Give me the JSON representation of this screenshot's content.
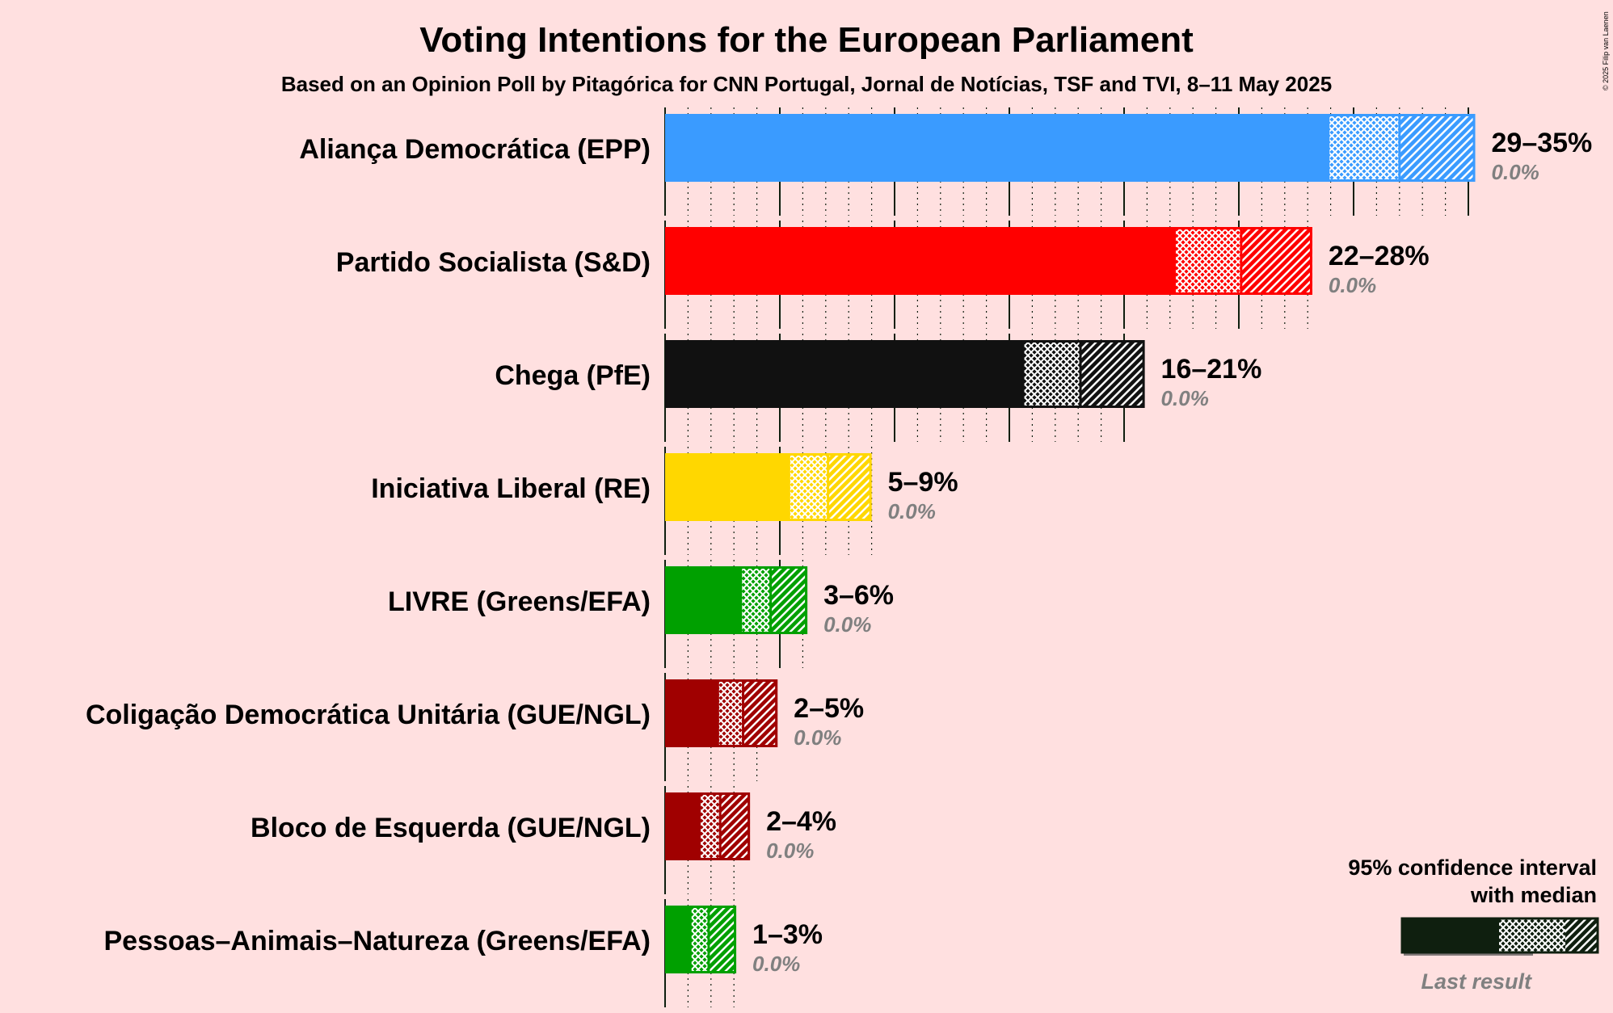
{
  "title": "Voting Intentions for the European Parliament",
  "subtitle": "Based on an Opinion Poll by Pitagórica for CNN Portugal, Jornal de Notícias, TSF and TVI, 8–11 May 2025",
  "copyright": "© 2025 Filip van Laenen",
  "legend": {
    "ci_line1": "95% confidence interval",
    "ci_line2": "with median",
    "last_result": "Last result"
  },
  "chart_data": {
    "type": "bar",
    "orientation": "horizontal",
    "title": "Voting Intentions for the European Parliament",
    "subtitle": "Based on an Opinion Poll by Pitagórica for CNN Portugal, Jornal de Notícias, TSF and TVI, 8–11 May 2025",
    "xlim": [
      0,
      36
    ],
    "unit": "%",
    "grid": true,
    "legend_position": "bottom-right",
    "categories": [
      "Aliança Democrática (EPP)",
      "Partido Socialista (S&D)",
      "Chega (PfE)",
      "Iniciativa Liberal (RE)",
      "LIVRE (Greens/EFA)",
      "Coligação Democrática Unitária (GUE/NGL)",
      "Bloco de Esquerda (GUE/NGL)",
      "Pessoas–Animais–Natureza (Greens/EFA)"
    ],
    "series": [
      {
        "party": "Aliança Democrática (EPP)",
        "color": "#3a9bff",
        "ci_low": 28.9,
        "median": 32.0,
        "ci_high": 35.3,
        "range_label": "29–35%",
        "last_result_label": "0.0%",
        "last_result": 0.0
      },
      {
        "party": "Partido Socialista (S&D)",
        "color": "#ff0000",
        "ci_low": 22.2,
        "median": 25.1,
        "ci_high": 28.2,
        "range_label": "22–28%",
        "last_result_label": "0.0%",
        "last_result": 0.0
      },
      {
        "party": "Chega (PfE)",
        "color": "#111111",
        "ci_low": 15.6,
        "median": 18.1,
        "ci_high": 20.9,
        "range_label": "16–21%",
        "last_result_label": "0.0%",
        "last_result": 0.0
      },
      {
        "party": "Iniciativa Liberal (RE)",
        "color": "#ffd700",
        "ci_low": 5.4,
        "median": 7.1,
        "ci_high": 9.0,
        "range_label": "5–9%",
        "last_result_label": "0.0%",
        "last_result": 0.0
      },
      {
        "party": "LIVRE (Greens/EFA)",
        "color": "#00a000",
        "ci_low": 3.3,
        "median": 4.6,
        "ci_high": 6.2,
        "range_label": "3–6%",
        "last_result_label": "0.0%",
        "last_result": 0.0
      },
      {
        "party": "Coligação Democrática Unitária (GUE/NGL)",
        "color": "#a00000",
        "ci_low": 2.3,
        "median": 3.4,
        "ci_high": 4.9,
        "range_label": "2–5%",
        "last_result_label": "0.0%",
        "last_result": 0.0
      },
      {
        "party": "Bloco de Esquerda (GUE/NGL)",
        "color": "#a00000",
        "ci_low": 1.5,
        "median": 2.4,
        "ci_high": 3.7,
        "range_label": "2–4%",
        "last_result_label": "0.0%",
        "last_result": 0.0
      },
      {
        "party": "Pessoas–Animais–Natureza (Greens/EFA)",
        "color": "#00a000",
        "ci_low": 1.1,
        "median": 1.9,
        "ci_high": 3.1,
        "range_label": "1–3%",
        "last_result_label": "0.0%",
        "last_result": 0.0
      }
    ]
  }
}
